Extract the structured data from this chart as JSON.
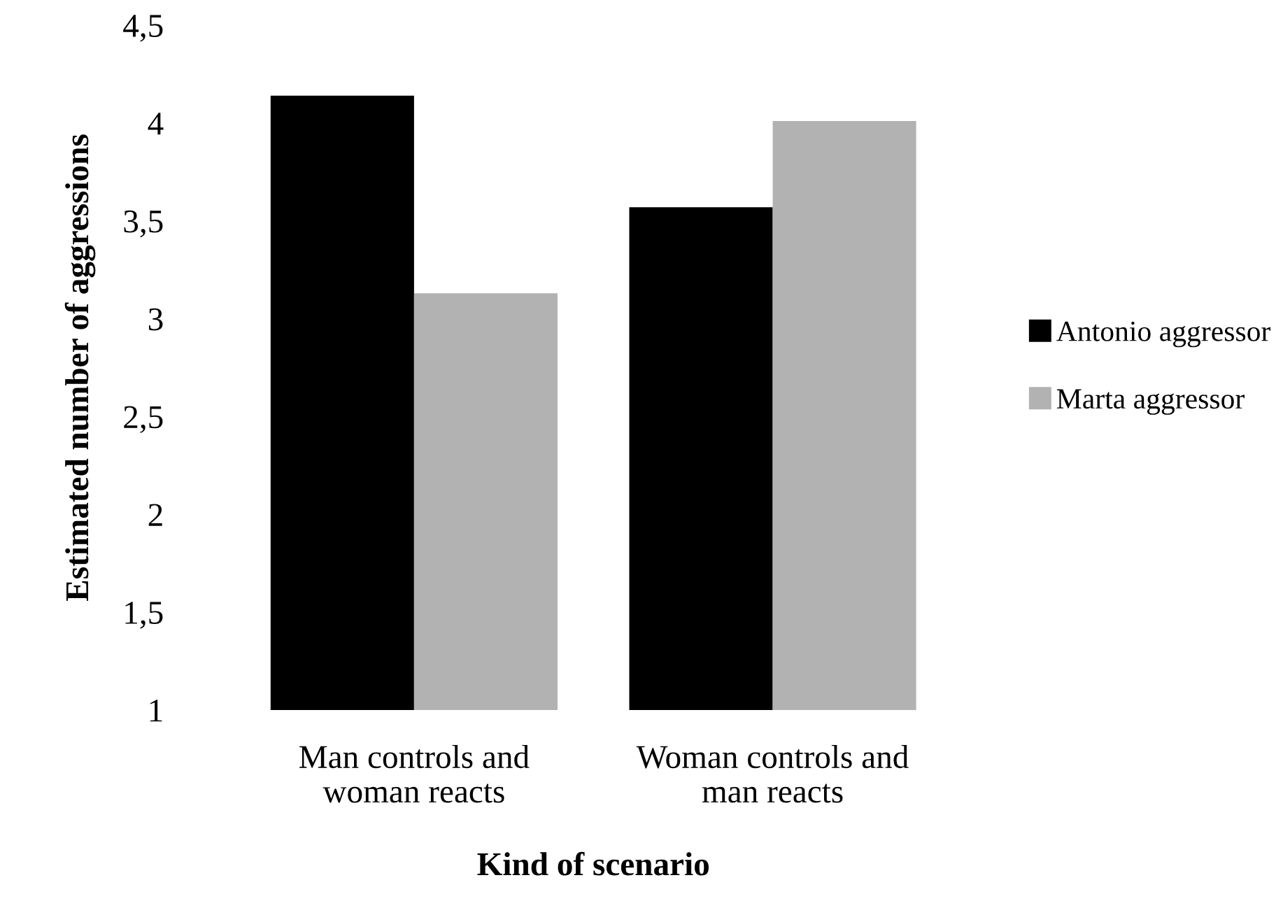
{
  "chart_data": {
    "type": "bar",
    "xlabel": "Kind of scenario",
    "ylabel": "Estimated number of aggressions",
    "categories": [
      "Man controls and\nwoman reacts",
      "Woman controls and\nman reacts"
    ],
    "series": [
      {
        "name": "Antonio aggressor",
        "color": "#000000",
        "values": [
          4.14,
          3.57
        ]
      },
      {
        "name": "Marta aggressor",
        "color": "#b2b2b2",
        "values": [
          3.13,
          4.01
        ]
      }
    ],
    "ylim": [
      1,
      4.5
    ],
    "yticks": [
      {
        "value": 1,
        "label": "1"
      },
      {
        "value": 1.5,
        "label": "1,5"
      },
      {
        "value": 2,
        "label": "2"
      },
      {
        "value": 2.5,
        "label": "2,5"
      },
      {
        "value": 3,
        "label": "3"
      },
      {
        "value": 3.5,
        "label": "3,5"
      },
      {
        "value": 4,
        "label": "4"
      },
      {
        "value": 4.5,
        "label": "4,5"
      }
    ],
    "grid": false,
    "legend": "right"
  }
}
